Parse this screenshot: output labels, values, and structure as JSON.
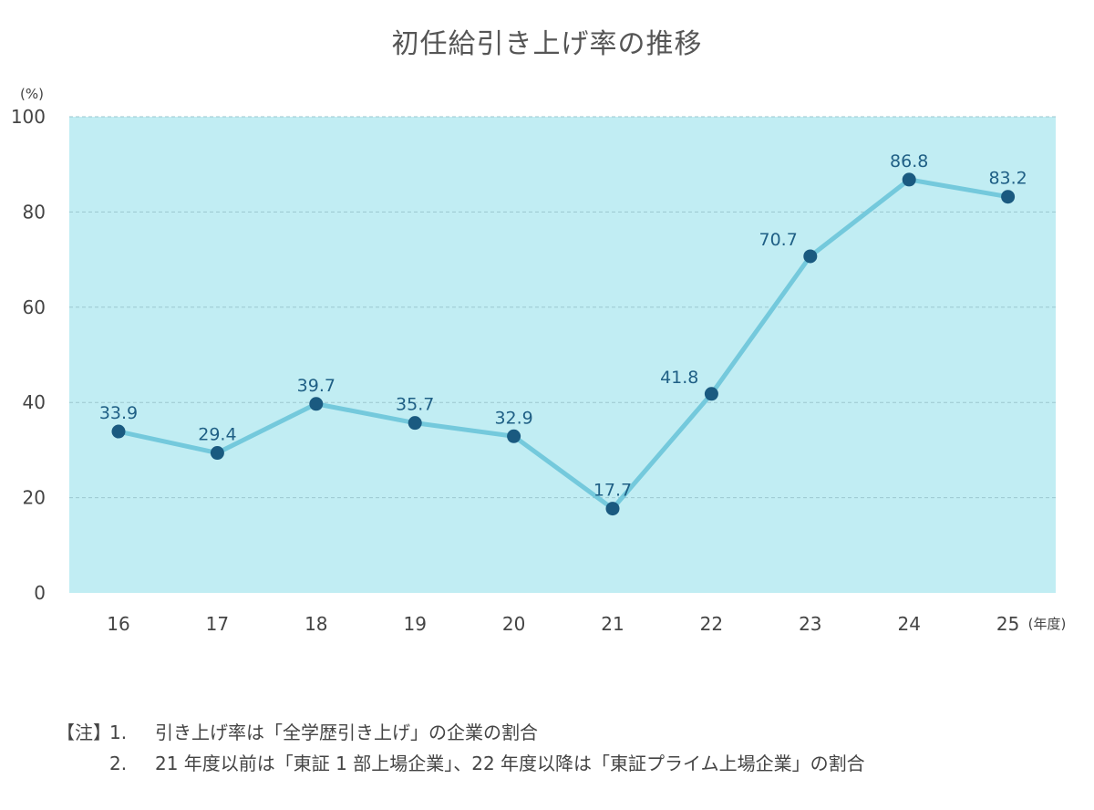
{
  "chart_data": {
    "type": "line",
    "title": "初任給引き上げ率の推移",
    "ylabel": "(%)",
    "xlabel": "(年度)",
    "categories": [
      "16",
      "17",
      "18",
      "19",
      "20",
      "21",
      "22",
      "23",
      "24",
      "25"
    ],
    "series": [
      {
        "values": [
          33.9,
          29.4,
          39.7,
          35.7,
          32.9,
          17.7,
          41.8,
          70.7,
          86.8,
          83.2
        ]
      }
    ],
    "data_labels": [
      "33.9",
      "29.4",
      "39.7",
      "35.7",
      "32.9",
      "17.7",
      "41.8",
      "70.7",
      "86.8",
      "83.2"
    ],
    "ylim": [
      0,
      100
    ],
    "yticks": [
      "0",
      "20",
      "40",
      "60",
      "80",
      "100"
    ],
    "grid": true,
    "colors": {
      "plot_bg": "#c1edf3",
      "line": "#74c9dc",
      "marker": "#1a5a80",
      "label": "#1f5f85",
      "grid": "#9cc7cf"
    }
  },
  "notes": {
    "prefix": "【注】",
    "items": [
      {
        "num": "1.",
        "text": "引き上げ率は「全学歴引き上げ」の企業の割合"
      },
      {
        "num": "2.",
        "text": "21 年度以前は「東証 1 部上場企業」、22 年度以降は「東証プライム上場企業」の割合"
      }
    ]
  }
}
